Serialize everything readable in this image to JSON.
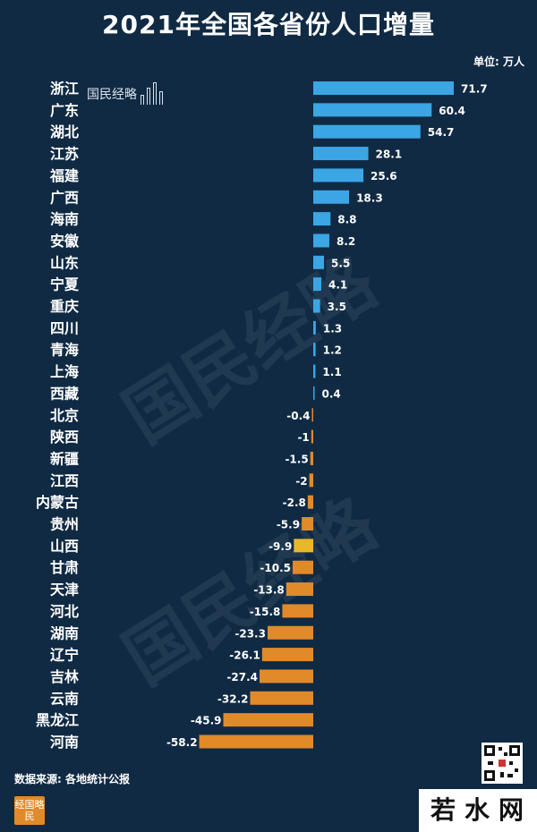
{
  "page": {
    "unit_label": "单位: 万人",
    "source_label": "数据来源: 各地统计公报",
    "logo_text": "国民经略",
    "watermark_text": "国民经略",
    "brand_seal": "经国略民",
    "site_logo": "若水网"
  },
  "colors": {
    "background": "#102a44",
    "positive": "#3ba6e3",
    "negative": "#e08a2a",
    "highlight": "#e8b72a"
  },
  "chart_data": {
    "type": "bar",
    "orientation": "horizontal",
    "title": "2021年全国各省份人口增量",
    "categories": [
      "浙江",
      "广东",
      "湖北",
      "江苏",
      "福建",
      "广西",
      "海南",
      "安徽",
      "山东",
      "宁夏",
      "重庆",
      "四川",
      "青海",
      "上海",
      "西藏",
      "北京",
      "陕西",
      "新疆",
      "江西",
      "内蒙古",
      "贵州",
      "山西",
      "甘肃",
      "天津",
      "河北",
      "湖南",
      "辽宁",
      "吉林",
      "云南",
      "黑龙江",
      "河南"
    ],
    "values": [
      71.7,
      60.4,
      54.7,
      28.1,
      25.6,
      18.3,
      8.8,
      8.2,
      5.5,
      4.1,
      3.5,
      1.3,
      1.2,
      1.1,
      0.4,
      -0.4,
      -1,
      -1.5,
      -2,
      -2.8,
      -5.9,
      -9.9,
      -10.5,
      -13.8,
      -15.8,
      -23.3,
      -26.1,
      -27.4,
      -32.2,
      -45.9,
      -58.2
    ],
    "value_labels": [
      "71.7",
      "60.4",
      "54.7",
      "28.1",
      "25.6",
      "18.3",
      "8.8",
      "8.2",
      "5.5",
      "4.1",
      "3.5",
      "1.3",
      "1.2",
      "1.1",
      "0.4",
      "-0.4",
      "-1",
      "-1.5",
      "-2",
      "-2.8",
      "-5.9",
      "-9.9",
      "-10.5",
      "-13.8",
      "-15.8",
      "-23.3",
      "-26.1",
      "-27.4",
      "-32.2",
      "-45.9",
      "-58.2"
    ],
    "highlight_category": "山西",
    "xlabel": "",
    "ylabel": "",
    "xlim": [
      -58.2,
      71.7
    ],
    "grid": false,
    "legend": "none"
  }
}
